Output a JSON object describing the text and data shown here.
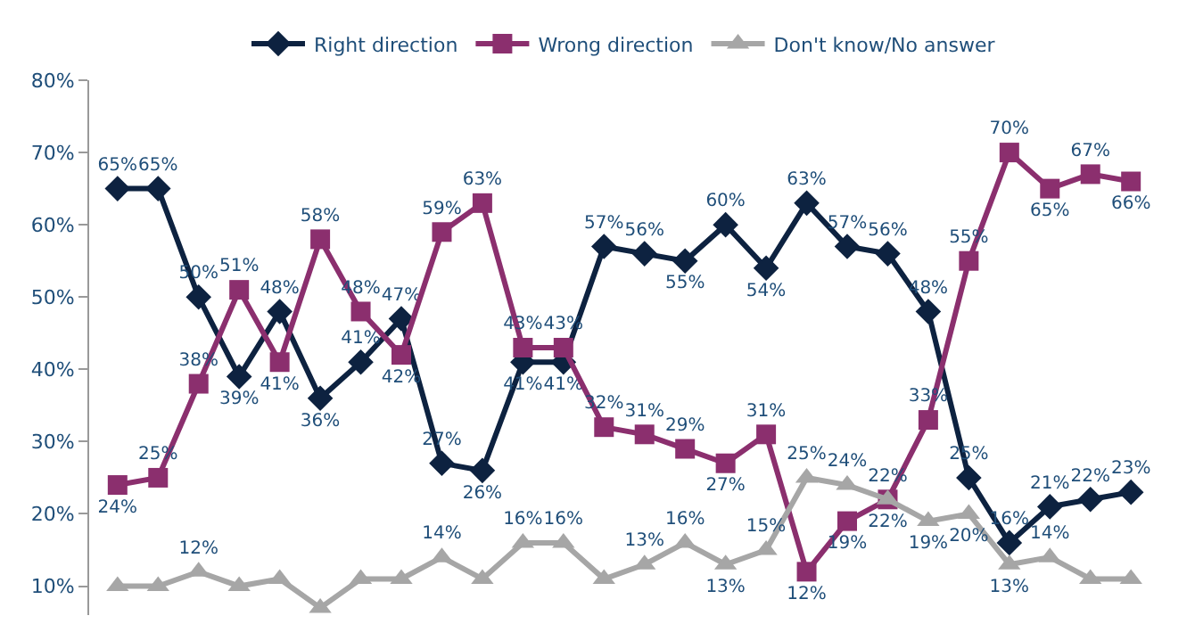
{
  "chart_data": {
    "type": "line",
    "categories": [
      null,
      null,
      null,
      null,
      null,
      null,
      null,
      null,
      null,
      null,
      null,
      null,
      null,
      null,
      null,
      null,
      null,
      null,
      null,
      null,
      null,
      null,
      null,
      null,
      null,
      null
    ],
    "series": [
      {
        "name": "Right direction",
        "color": "#0d2240",
        "marker": "diamond",
        "values": [
          65,
          65,
          50,
          39,
          48,
          36,
          41,
          47,
          27,
          26,
          41,
          41,
          57,
          56,
          55,
          60,
          54,
          63,
          57,
          56,
          48,
          25,
          16,
          21,
          22,
          23
        ],
        "value_labels": [
          "65%",
          "65%",
          "50%",
          "39%",
          "48%",
          "36%",
          "41%",
          "47%",
          "27%",
          "26%",
          "41%",
          "41%",
          "57%",
          "56%",
          "55%",
          "60%",
          "54%",
          "63%",
          "57%",
          "56%",
          "48%",
          "25%",
          "16%",
          "21%",
          "22%",
          "23%"
        ]
      },
      {
        "name": "Wrong direction",
        "color": "#8b2f6e",
        "marker": "square",
        "values": [
          24,
          25,
          38,
          51,
          41,
          58,
          48,
          42,
          59,
          63,
          43,
          43,
          32,
          31,
          29,
          27,
          31,
          12,
          19,
          22,
          33,
          55,
          70,
          65,
          67,
          66
        ],
        "value_labels": [
          "24%",
          "25%",
          "38%",
          "51%",
          "41%",
          "58%",
          "48%",
          "42%",
          "59%",
          "63%",
          "43%",
          "43%",
          "32%",
          "31%",
          "29%",
          "27%",
          "31%",
          "12%",
          "19%",
          "22%",
          "33%",
          "55%",
          "70%",
          "65%",
          "67%",
          "66%"
        ]
      },
      {
        "name": "Don't know/No answer",
        "color": "#a6a6a6",
        "marker": "triangle",
        "values": [
          10,
          10,
          12,
          10,
          11,
          7,
          11,
          11,
          14,
          11,
          16,
          16,
          11,
          13,
          16,
          13,
          15,
          25,
          24,
          22,
          19,
          20,
          13,
          14,
          11,
          11
        ],
        "value_labels": [
          null,
          null,
          "12%",
          null,
          null,
          null,
          null,
          null,
          "14%",
          null,
          "16%",
          "16%",
          null,
          "13%",
          "16%",
          "13%",
          "15%",
          "25%",
          "24%",
          "22%",
          "19%",
          "20%",
          "13%",
          "14%",
          null,
          null
        ]
      }
    ],
    "ylim": [
      6,
      80
    ],
    "yticks": [
      {
        "value": 10,
        "label": "10%"
      },
      {
        "value": 20,
        "label": "20%"
      },
      {
        "value": 30,
        "label": "30%"
      },
      {
        "value": 40,
        "label": "40%"
      },
      {
        "value": 50,
        "label": "50%"
      },
      {
        "value": 60,
        "label": "60%"
      },
      {
        "value": 70,
        "label": "70%"
      },
      {
        "value": 80,
        "label": "80%"
      }
    ],
    "legend": "top",
    "line_style": "solid"
  }
}
